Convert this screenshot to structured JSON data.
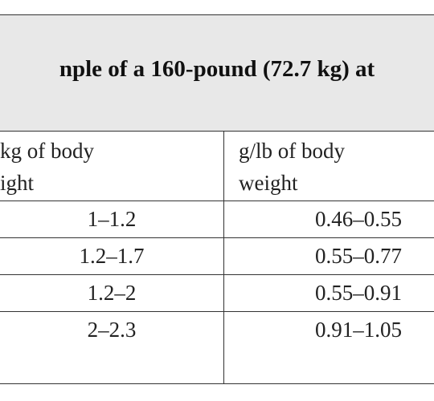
{
  "title": "nple of a 160-pound (72.7 kg) at",
  "table": {
    "header": [
      [
        "kg of body",
        "ight"
      ],
      [
        "g/lb of body",
        "weight"
      ]
    ],
    "rows": [
      [
        "1–1.2",
        "0.46–0.55"
      ],
      [
        "1.2–1.7",
        "0.55–0.77"
      ],
      [
        "1.2–2",
        "0.55–0.91"
      ],
      [
        "2–2.3",
        "0.91–1.05"
      ]
    ]
  }
}
